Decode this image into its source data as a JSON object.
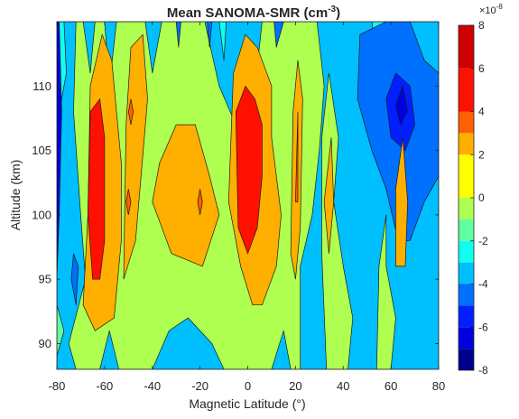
{
  "chart_data": {
    "type": "contourf",
    "title": {
      "base": "Mean SANOMA-SMR (cm",
      "superscript": "-3",
      "close": ")"
    },
    "xlabel": "Magnetic Latitude (°)",
    "ylabel": "Altitude (km)",
    "xlim": [
      -80,
      80
    ],
    "ylim": [
      88,
      115
    ],
    "x_ticks": [
      -80,
      -60,
      -40,
      -20,
      0,
      20,
      40,
      60,
      80
    ],
    "y_ticks": [
      90,
      95,
      100,
      105,
      110
    ],
    "colorbar": {
      "exponent_prefix": "×10",
      "exponent": "-8",
      "range": [
        -8,
        8
      ],
      "tick_values": [
        -8,
        -6,
        -4,
        -2,
        0,
        2,
        4,
        6,
        8
      ],
      "levels": [
        -8,
        -7,
        -6,
        -5,
        -4,
        -3,
        -2,
        -1,
        0,
        1,
        2,
        3,
        4,
        5,
        6,
        7,
        8
      ],
      "colors": [
        "#00008f",
        "#0000df",
        "#0020ff",
        "#0070ff",
        "#00bfff",
        "#10ffef",
        "#60ff9f",
        "#afff50",
        "#ffff00",
        "#ffaf00",
        "#ff6000",
        "#ff1000",
        "#cf0000",
        "#800000"
      ],
      "band_levels": [
        -8,
        -7,
        -6,
        -5,
        -4,
        -3,
        -2,
        -1,
        0,
        2,
        3,
        4,
        6,
        8
      ]
    },
    "regions": [
      {
        "level": -1,
        "color": "#00bfff",
        "points": [
          [
            -80,
            88
          ],
          [
            80,
            88
          ],
          [
            80,
            115
          ],
          [
            -80,
            115
          ]
        ]
      },
      {
        "level": 0,
        "color": "#afff50",
        "points": [
          [
            -79,
            115
          ],
          [
            -72,
            115
          ],
          [
            -73,
            108
          ],
          [
            -70,
            100
          ],
          [
            -68,
            95
          ],
          [
            -75,
            90
          ],
          [
            -72,
            88
          ],
          [
            -62,
            88
          ],
          [
            -58,
            91
          ],
          [
            -54,
            88
          ],
          [
            -40,
            88
          ],
          [
            -33,
            91
          ],
          [
            -25,
            92
          ],
          [
            -15,
            90
          ],
          [
            -10,
            88
          ],
          [
            10,
            88
          ],
          [
            15,
            91
          ],
          [
            18,
            88
          ],
          [
            22,
            88
          ],
          [
            22,
            96
          ],
          [
            27,
            100
          ],
          [
            30,
            105
          ],
          [
            32,
            110
          ],
          [
            29,
            115
          ],
          [
            6,
            115
          ],
          [
            2,
            108
          ],
          [
            -5,
            107
          ],
          [
            -12,
            110
          ],
          [
            -18,
            115
          ],
          [
            -36,
            115
          ],
          [
            -40,
            111
          ],
          [
            -43,
            115
          ],
          [
            -55,
            115
          ],
          [
            -58,
            110
          ],
          [
            -60,
            115
          ],
          [
            -64,
            115
          ],
          [
            -66,
            111
          ],
          [
            -69,
            115
          ]
        ]
      },
      {
        "level": 0,
        "color": "#afff50",
        "points": [
          [
            33,
            88
          ],
          [
            42,
            88
          ],
          [
            44,
            92
          ],
          [
            40,
            96
          ],
          [
            36,
            101
          ],
          [
            38,
            106
          ],
          [
            34,
            111
          ],
          [
            31,
            106
          ],
          [
            31,
            97
          ]
        ]
      },
      {
        "level": 0,
        "color": "#afff50",
        "points": [
          [
            54,
            88
          ],
          [
            60,
            88
          ],
          [
            62,
            92
          ],
          [
            58,
            96
          ],
          [
            58,
            100
          ],
          [
            55,
            96
          ]
        ]
      },
      {
        "level": -2,
        "color": "#60ff9f",
        "points": [
          [
            -80,
            93
          ],
          [
            -77,
            91
          ],
          [
            -80,
            89
          ]
        ]
      },
      {
        "level": -3,
        "color": "#10ffef",
        "points": [
          [
            -80,
            115
          ],
          [
            -77,
            115
          ],
          [
            -76,
            111
          ],
          [
            -80,
            107
          ]
        ]
      },
      {
        "level": -3,
        "color": "#10ffef",
        "points": [
          [
            -12,
            115
          ],
          [
            -9,
            115
          ],
          [
            -10,
            112
          ]
        ]
      },
      {
        "level": -3,
        "color": "#10ffef",
        "points": [
          [
            52,
            115
          ],
          [
            59,
            115
          ],
          [
            58,
            112
          ],
          [
            54,
            112
          ]
        ]
      },
      {
        "level": -4,
        "color": "#0070ff",
        "points": [
          [
            46,
            109
          ],
          [
            47,
            114
          ],
          [
            58,
            115
          ],
          [
            68,
            115
          ],
          [
            74,
            112
          ],
          [
            80,
            111
          ],
          [
            80,
            103
          ],
          [
            74,
            101
          ],
          [
            68,
            98
          ],
          [
            63,
            98
          ],
          [
            58,
            102
          ],
          [
            52,
            105
          ]
        ]
      },
      {
        "level": -4,
        "color": "#0070ff",
        "points": [
          [
            -73,
            97
          ],
          [
            -71,
            96
          ],
          [
            -72,
            93
          ],
          [
            -74,
            95
          ]
        ]
      },
      {
        "level": -4,
        "color": "#0070ff",
        "points": [
          [
            -17,
            115
          ],
          [
            -15,
            115
          ],
          [
            -16,
            113
          ]
        ]
      },
      {
        "level": -4,
        "color": "#0070ff",
        "points": [
          [
            -30,
            115
          ],
          [
            -28,
            115
          ],
          [
            -29,
            113
          ]
        ]
      },
      {
        "level": -5,
        "color": "#0020ff",
        "points": [
          [
            58,
            109
          ],
          [
            62,
            111
          ],
          [
            68,
            110
          ],
          [
            70,
            107
          ],
          [
            66,
            105
          ],
          [
            60,
            106
          ]
        ]
      },
      {
        "level": -7,
        "color": "#0000df",
        "points": [
          [
            62,
            108.5
          ],
          [
            65,
            110
          ],
          [
            67,
            108
          ],
          [
            64,
            107
          ]
        ]
      },
      {
        "level": -7,
        "color": "#0000df",
        "points": [
          [
            -80,
            115
          ],
          [
            -79,
            115
          ],
          [
            -78,
            108
          ],
          [
            -79,
            100
          ],
          [
            -80,
            95
          ]
        ]
      },
      {
        "level": 2,
        "color": "#ffaf00",
        "points": [
          [
            -69,
            93
          ],
          [
            -64,
            91
          ],
          [
            -56,
            92
          ],
          [
            -53,
            98
          ],
          [
            -53,
            104
          ],
          [
            -57,
            112
          ],
          [
            -61,
            114
          ],
          [
            -66,
            110
          ],
          [
            -67,
            100
          ]
        ]
      },
      {
        "level": 2,
        "color": "#ffaf00",
        "points": [
          [
            -52,
            95
          ],
          [
            -47,
            98
          ],
          [
            -42,
            109
          ],
          [
            -44,
            114
          ],
          [
            -49,
            113
          ],
          [
            -51,
            107
          ]
        ]
      },
      {
        "level": 2,
        "color": "#ffaf00",
        "points": [
          [
            -40,
            101
          ],
          [
            -32,
            97
          ],
          [
            -19,
            96
          ],
          [
            -12,
            100
          ],
          [
            -16,
            103
          ],
          [
            -22,
            107
          ],
          [
            -30,
            107
          ],
          [
            -37,
            104
          ]
        ]
      },
      {
        "level": 2,
        "color": "#ffaf00",
        "points": [
          [
            -8,
            101
          ],
          [
            -3,
            96
          ],
          [
            2,
            93
          ],
          [
            6,
            93
          ],
          [
            12,
            96
          ],
          [
            14,
            100
          ],
          [
            10,
            106
          ],
          [
            10,
            110
          ],
          [
            4,
            113
          ],
          [
            -1,
            114
          ],
          [
            -6,
            111
          ]
        ]
      },
      {
        "level": 2,
        "color": "#ffaf00",
        "points": [
          [
            18,
            97
          ],
          [
            20,
            95
          ],
          [
            22,
            99
          ],
          [
            23,
            109
          ],
          [
            21,
            112
          ],
          [
            19,
            108
          ]
        ]
      },
      {
        "level": 2,
        "color": "#ffaf00",
        "points": [
          [
            32,
            101
          ],
          [
            34,
            97
          ],
          [
            36,
            101
          ],
          [
            35,
            106
          ]
        ]
      },
      {
        "level": 2,
        "color": "#ffaf00",
        "points": [
          [
            62,
            96
          ],
          [
            66,
            96
          ],
          [
            67,
            101
          ],
          [
            65,
            106
          ],
          [
            62,
            102
          ]
        ]
      },
      {
        "level": 3,
        "color": "#ff6000",
        "points": [
          [
            -21,
            101
          ],
          [
            -20,
            102
          ],
          [
            -19,
            101
          ],
          [
            -20,
            100
          ]
        ]
      },
      {
        "level": 3,
        "color": "#ff6000",
        "points": [
          [
            -50,
            108
          ],
          [
            -49,
            109
          ],
          [
            -48,
            108
          ],
          [
            -49,
            107
          ]
        ]
      },
      {
        "level": 3,
        "color": "#ff6000",
        "points": [
          [
            -51,
            101
          ],
          [
            -50,
            102
          ],
          [
            -49,
            101
          ],
          [
            -50,
            100
          ]
        ]
      },
      {
        "level": 3,
        "color": "#ff6000",
        "points": [
          [
            20,
            101
          ],
          [
            21,
            108
          ],
          [
            21,
            101
          ]
        ]
      },
      {
        "level": 4,
        "color": "#ff1000",
        "points": [
          [
            -66,
            108
          ],
          [
            -62,
            109
          ],
          [
            -60,
            106
          ],
          [
            -60,
            98
          ],
          [
            -62,
            95
          ],
          [
            -65,
            95
          ],
          [
            -67,
            100
          ]
        ]
      },
      {
        "level": 4,
        "color": "#ff1000",
        "points": [
          [
            -4,
            99
          ],
          [
            0,
            97
          ],
          [
            4,
            99
          ],
          [
            6,
            103
          ],
          [
            6,
            107
          ],
          [
            3,
            109
          ],
          [
            -1,
            110
          ],
          [
            -5,
            108
          ]
        ]
      },
      {
        "level": -4,
        "color": "#0070ff",
        "points": [
          [
            11,
            115
          ],
          [
            12,
            113
          ],
          [
            15,
            115
          ]
        ]
      }
    ]
  }
}
